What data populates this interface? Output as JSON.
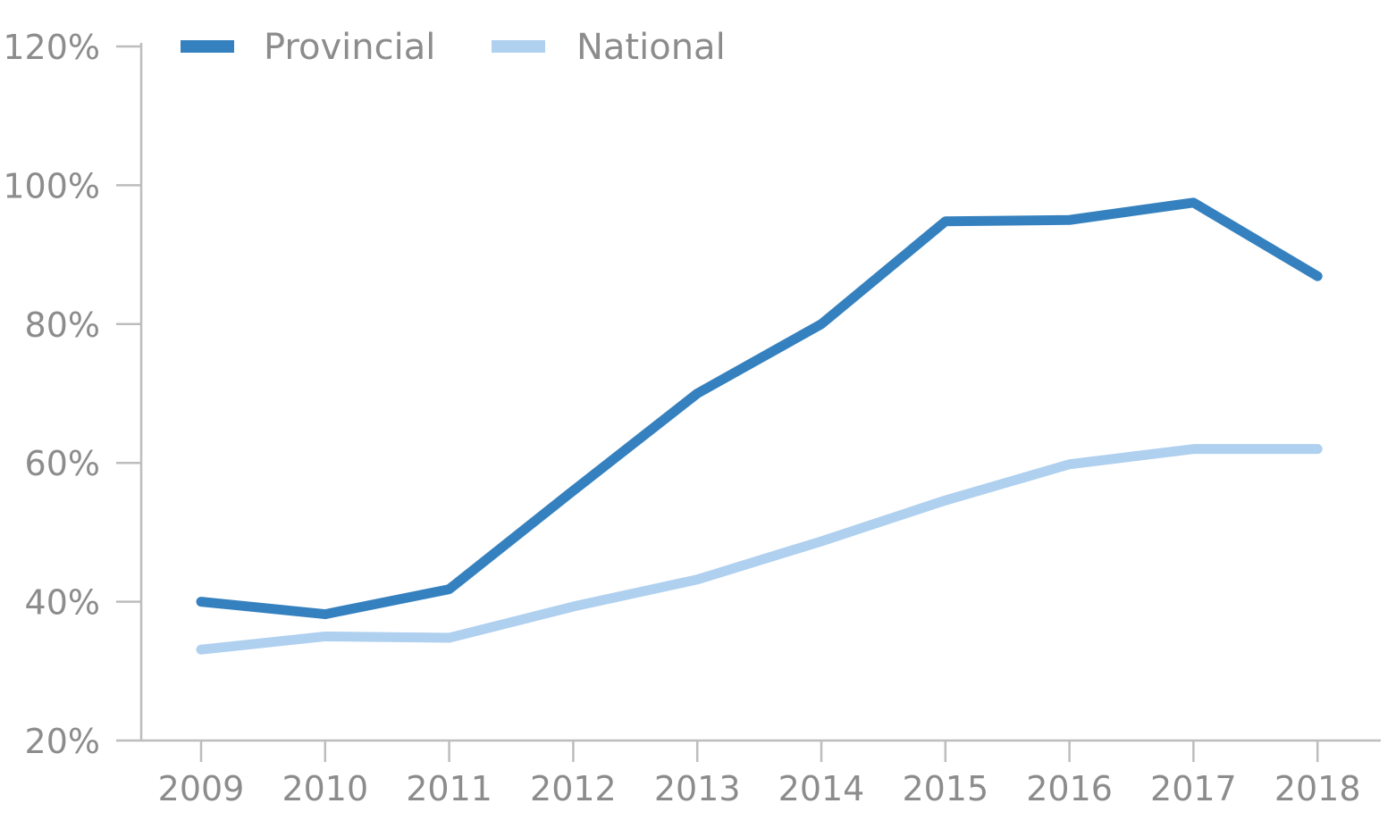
{
  "chart_data": {
    "type": "line",
    "x": [
      "2009",
      "2010",
      "2011",
      "2012",
      "2013",
      "2014",
      "2015",
      "2016",
      "2017",
      "2018"
    ],
    "series": [
      {
        "name": "Provincial",
        "color": "#3581bf",
        "values": [
          40,
          38.2,
          41.8,
          56,
          70,
          80,
          94.8,
          95,
          97.5,
          86.9
        ]
      },
      {
        "name": "National",
        "color": "#afd0ef",
        "values": [
          33.1,
          35,
          34.8,
          39.3,
          43.2,
          48.7,
          54.6,
          59.8,
          62,
          62
        ]
      }
    ],
    "y_ticks": [
      "120%",
      "100%",
      "80%",
      "60%",
      "40%",
      "20%"
    ],
    "ylim": [
      20,
      120
    ],
    "legend_position": "top-left",
    "grid": false
  }
}
